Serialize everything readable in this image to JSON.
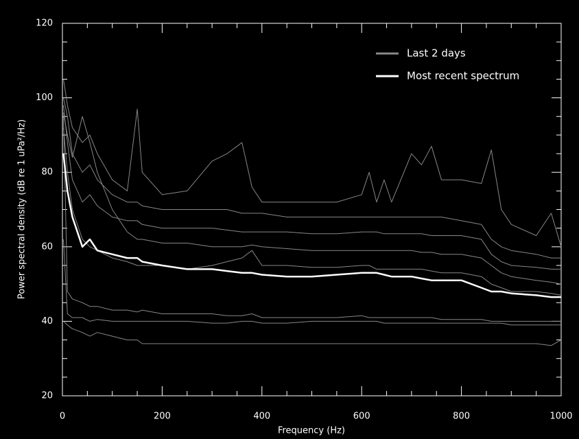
{
  "chart_data": {
    "type": "line",
    "xlabel": "Frequency (Hz)",
    "ylabel": "Power spectral density (dB re 1 uPa²/Hz)",
    "xlim": [
      0,
      1000
    ],
    "ylim": [
      20,
      120
    ],
    "xticks": [
      0,
      200,
      400,
      600,
      800,
      1000
    ],
    "yticks": [
      20,
      40,
      60,
      80,
      100,
      120
    ],
    "legend": "upper-right",
    "x": [
      2,
      10,
      20,
      40,
      55,
      70,
      100,
      130,
      150,
      160,
      200,
      250,
      300,
      330,
      360,
      380,
      400,
      450,
      500,
      550,
      600,
      615,
      630,
      645,
      660,
      700,
      720,
      740,
      760,
      800,
      840,
      860,
      880,
      900,
      950,
      980,
      1000
    ],
    "series": [
      {
        "name": "Last 2 days",
        "color": "#888888",
        "values": [
          105,
          98,
          92,
          88,
          90,
          85,
          78,
          75,
          97,
          80,
          74,
          75,
          83,
          85,
          88,
          76,
          72,
          72,
          72,
          72,
          74,
          80,
          72,
          78,
          72,
          85,
          82,
          87,
          78,
          78,
          77,
          86,
          70,
          66,
          63,
          69,
          60
        ]
      },
      {
        "color": "#888888",
        "values": [
          100,
          95,
          85,
          80,
          82,
          78,
          74,
          72,
          72,
          71,
          70,
          70,
          70,
          70,
          69,
          69,
          69,
          68,
          68,
          68,
          68,
          68,
          68,
          68,
          68,
          68,
          68,
          68,
          68,
          67,
          66,
          62,
          60,
          59,
          58,
          57,
          57
        ]
      },
      {
        "color": "#888888",
        "values": [
          98,
          88,
          78,
          72,
          74,
          71,
          68,
          67,
          67,
          66,
          65,
          65,
          65,
          64.5,
          64,
          64,
          64,
          64,
          63.5,
          63.5,
          64,
          64,
          64,
          63.5,
          63.5,
          63.5,
          63.5,
          63,
          63,
          63,
          62,
          58,
          56,
          55,
          54.5,
          54,
          54
        ]
      },
      {
        "color": "#888888",
        "values": [
          96,
          90,
          84,
          95,
          88,
          80,
          70,
          64,
          62,
          62,
          61,
          61,
          60,
          60,
          60,
          60.5,
          60,
          59.5,
          59,
          59,
          59,
          59,
          59,
          59,
          59,
          59,
          58.5,
          58.5,
          58,
          58,
          57,
          55,
          53,
          52,
          51,
          50.5,
          50
        ]
      },
      {
        "color": "#888888",
        "values": [
          92,
          80,
          70,
          62,
          60,
          59,
          57,
          56,
          55,
          55,
          55,
          54,
          55,
          56,
          57,
          59,
          55,
          55,
          54.5,
          54.5,
          55,
          55,
          54,
          54,
          54,
          54,
          54,
          53.5,
          53,
          53,
          52,
          50,
          49,
          48,
          48,
          47.5,
          47
        ]
      },
      {
        "color": "#888888",
        "values": [
          95,
          48,
          46,
          45,
          44,
          44,
          43,
          43,
          42.5,
          43,
          42,
          42,
          42,
          41.5,
          41.5,
          42,
          41,
          41,
          41,
          41,
          41.5,
          41,
          41,
          41,
          41,
          41,
          41,
          41,
          40.5,
          40.5,
          40.5,
          40,
          40,
          40,
          40,
          40,
          40
        ]
      },
      {
        "color": "#888888",
        "values": [
          62,
          42,
          41,
          41,
          40,
          40.5,
          40,
          40,
          40,
          40,
          40,
          40,
          39.5,
          39.5,
          40,
          40,
          39.5,
          39.5,
          40,
          40,
          40,
          40,
          40,
          39.5,
          39.5,
          39.5,
          39.5,
          39.5,
          39.5,
          39.5,
          39.5,
          39.5,
          39.5,
          39,
          39,
          39,
          39
        ]
      },
      {
        "color": "#888888",
        "values": [
          40,
          39,
          38,
          37,
          36,
          37,
          36,
          35,
          35,
          34,
          34,
          34,
          34,
          34,
          34,
          34,
          34,
          34,
          34,
          34,
          34,
          34,
          34,
          34,
          34,
          34,
          34,
          34,
          34,
          34,
          34,
          34,
          34,
          34,
          34,
          33.5,
          35
        ]
      },
      {
        "name": "Most recent spectrum",
        "color": "#ffffff",
        "values": [
          85,
          75,
          68,
          60,
          62,
          59,
          58,
          57,
          57,
          56,
          55,
          54,
          54,
          53.5,
          53,
          53,
          52.5,
          52,
          52,
          52.5,
          53,
          53,
          53,
          52.5,
          52,
          52,
          51.5,
          51,
          51,
          51,
          49,
          48,
          48,
          47.5,
          47,
          46.5,
          46.5
        ]
      }
    ]
  }
}
